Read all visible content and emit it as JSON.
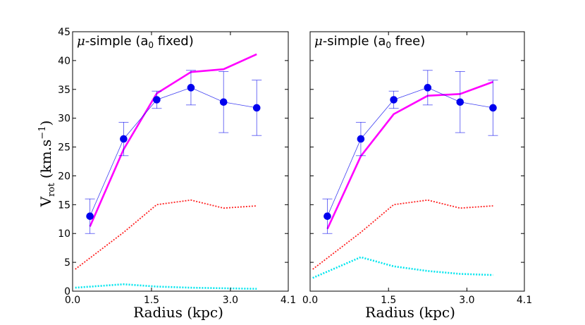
{
  "figure": {
    "ylabel_main": "V",
    "ylabel_sub": "rot",
    "ylabel_units": " (km.s",
    "ylabel_exp": "−1",
    "ylabel_close": ")",
    "xlabel": "Radius (kpc)"
  },
  "colors": {
    "data": "#0000ee",
    "model": "#ff00ff",
    "gas": "#ff2222",
    "stars": "#00e5ee"
  },
  "chart_data": [
    {
      "type": "line",
      "title_mu": "μ",
      "title_text": "-simple (a",
      "title_sub": "0",
      "title_end": " fixed)",
      "xlabel": "Radius (kpc)",
      "ylabel": "V_rot (km.s^-1)",
      "xlim": [
        0.0,
        4.1
      ],
      "ylim": [
        0,
        45
      ],
      "xticks": [
        "0.0",
        "1.5",
        "3.0",
        "4.1"
      ],
      "xtick_values": [
        0.0,
        1.5,
        3.0,
        4.1
      ],
      "yticks": [
        0,
        5,
        10,
        15,
        20,
        25,
        30,
        35,
        40,
        45
      ],
      "show_yticks": true,
      "observed": {
        "x": [
          0.33,
          0.97,
          1.6,
          2.25,
          2.87,
          3.5
        ],
        "y": [
          13.0,
          26.4,
          33.2,
          35.3,
          32.8,
          31.8
        ],
        "yerr": [
          3.0,
          2.9,
          1.5,
          3.0,
          5.3,
          4.8
        ]
      },
      "series": [
        {
          "key": "model",
          "x": [
            0.33,
            0.97,
            1.6,
            2.25,
            2.87,
            3.5
          ],
          "y": [
            11.2,
            24.6,
            34.3,
            38.0,
            38.5,
            41.1
          ]
        },
        {
          "key": "gas",
          "x": [
            0.05,
            0.97,
            1.6,
            2.25,
            2.87,
            3.5
          ],
          "y": [
            3.8,
            10.2,
            15.0,
            15.8,
            14.4,
            14.8
          ]
        },
        {
          "key": "stars",
          "x": [
            0.05,
            0.97,
            1.6,
            2.25,
            2.87,
            3.5
          ],
          "y": [
            0.6,
            1.2,
            0.8,
            0.6,
            0.5,
            0.4
          ]
        }
      ]
    },
    {
      "type": "line",
      "title_mu": "μ",
      "title_text": "-simple (a",
      "title_sub": "0",
      "title_end": " free)",
      "xlabel": "Radius (kpc)",
      "ylabel": "",
      "xlim": [
        0.0,
        4.1
      ],
      "ylim": [
        0,
        45
      ],
      "xticks": [
        "0.0",
        "1.5",
        "3.0",
        "4.1"
      ],
      "xtick_values": [
        0.0,
        1.5,
        3.0,
        4.1
      ],
      "yticks": [
        0,
        5,
        10,
        15,
        20,
        25,
        30,
        35,
        40,
        45
      ],
      "show_yticks": false,
      "observed": {
        "x": [
          0.33,
          0.97,
          1.6,
          2.25,
          2.87,
          3.5
        ],
        "y": [
          13.0,
          26.4,
          33.2,
          35.3,
          32.8,
          31.8
        ],
        "yerr": [
          3.0,
          2.9,
          1.5,
          3.0,
          5.3,
          4.8
        ]
      },
      "series": [
        {
          "key": "model",
          "x": [
            0.33,
            0.97,
            1.6,
            2.25,
            2.87,
            3.5
          ],
          "y": [
            10.8,
            23.4,
            30.7,
            33.9,
            34.2,
            36.3
          ]
        },
        {
          "key": "gas",
          "x": [
            0.05,
            0.97,
            1.6,
            2.25,
            2.87,
            3.5
          ],
          "y": [
            3.8,
            10.2,
            15.0,
            15.8,
            14.4,
            14.8
          ]
        },
        {
          "key": "stars",
          "x": [
            0.05,
            0.97,
            1.6,
            2.25,
            2.87,
            3.5
          ],
          "y": [
            2.3,
            5.9,
            4.3,
            3.5,
            3.0,
            2.8
          ]
        }
      ]
    }
  ]
}
